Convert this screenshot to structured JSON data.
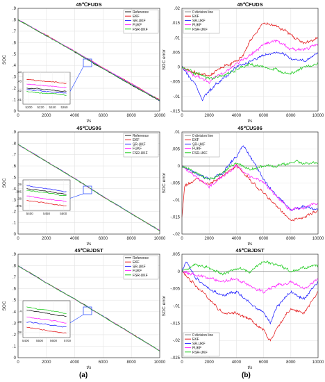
{
  "figure": {
    "label_a": "(a)",
    "label_b": "(b)"
  },
  "colors": {
    "Reference": "#1a1a1a",
    "EKF": "#e41a1c",
    "SR-UKF": "#2323ff",
    "FUKF": "#ff22ff",
    "FSR-UKF": "#22cc22",
    "zero": "#888888",
    "box": "#3355ff"
  },
  "chart_data": [
    {
      "id": "soc-fuds",
      "type": "line",
      "title": "45℃FUDS",
      "xlabel": "t/s",
      "ylabel": "SOC",
      "xlim": [
        0,
        10000
      ],
      "ylim": [
        0,
        0.9
      ],
      "xticks": [
        0,
        2000,
        4000,
        6000,
        8000,
        10000
      ],
      "yticks": [
        0,
        0.1,
        0.2,
        0.3,
        0.4,
        0.5,
        0.6,
        0.7,
        0.8,
        0.9
      ],
      "legend": "top-right",
      "series": [
        {
          "name": "Reference",
          "x": [
            0,
            2000,
            4000,
            6000,
            8000,
            10000
          ],
          "y": [
            0.8,
            0.66,
            0.52,
            0.37,
            0.23,
            0.09
          ]
        },
        {
          "name": "EKF",
          "x": [
            0,
            2000,
            4000,
            6000,
            8000,
            10000
          ],
          "y": [
            0.8,
            0.665,
            0.525,
            0.38,
            0.24,
            0.1
          ]
        },
        {
          "name": "SR-UKF",
          "x": [
            0,
            2000,
            4000,
            6000,
            8000,
            10000
          ],
          "y": [
            0.8,
            0.662,
            0.522,
            0.375,
            0.235,
            0.095
          ]
        },
        {
          "name": "FUKF",
          "x": [
            0,
            2000,
            4000,
            6000,
            8000,
            10000
          ],
          "y": [
            0.8,
            0.663,
            0.523,
            0.378,
            0.238,
            0.098
          ]
        },
        {
          "name": "FSR-UKF",
          "x": [
            0,
            2000,
            4000,
            6000,
            8000,
            10000
          ],
          "y": [
            0.8,
            0.66,
            0.52,
            0.372,
            0.232,
            0.092
          ]
        }
      ],
      "inset": {
        "xlim": [
          5190,
          5270
        ],
        "ylim": [
          0.405,
          0.44
        ],
        "xticks": [
          5200,
          5220,
          5240,
          5260
        ],
        "yticks": [
          0.41,
          0.42,
          0.43,
          0.44
        ],
        "series": [
          {
            "name": "EKF",
            "y": [
              0.432,
              0.428
            ]
          },
          {
            "name": "FUKF",
            "y": [
              0.427,
              0.423
            ]
          },
          {
            "name": "Reference",
            "y": [
              0.423,
              0.419
            ]
          },
          {
            "name": "SR-UKF",
            "y": [
              0.421,
              0.417
            ]
          },
          {
            "name": "FSR-UKF",
            "y": [
              0.419,
              0.415
            ]
          }
        ]
      }
    },
    {
      "id": "err-fuds",
      "type": "line",
      "title": "45℃FUDS",
      "xlabel": "t/s",
      "ylabel": "SOC error",
      "xlim": [
        0,
        10000
      ],
      "ylim": [
        -0.015,
        0.02
      ],
      "xticks": [
        0,
        2000,
        4000,
        6000,
        8000,
        10000
      ],
      "yticks": [
        -0.015,
        -0.01,
        -0.005,
        0,
        0.005,
        0.01,
        0.015,
        0.02
      ],
      "legend": "top-left",
      "series": [
        {
          "name": "0 division line",
          "x": [
            0,
            10000
          ],
          "y": [
            0,
            0
          ]
        },
        {
          "name": "EKF",
          "x": [
            0,
            1000,
            2000,
            3000,
            4000,
            4500,
            5000,
            6000,
            7000,
            8000,
            9000,
            10000
          ],
          "y": [
            0,
            -0.002,
            -0.003,
            0.0,
            0.002,
            0.004,
            0.009,
            0.015,
            0.014,
            0.011,
            0.008,
            0.01
          ]
        },
        {
          "name": "SR-UKF",
          "x": [
            0,
            1000,
            1500,
            2000,
            3000,
            4000,
            5000,
            6000,
            7000,
            8000,
            9000,
            10000
          ],
          "y": [
            0,
            -0.006,
            -0.011,
            -0.008,
            -0.004,
            0.0,
            0.002,
            0.004,
            0.005,
            0.003,
            0.002,
            0.005
          ]
        },
        {
          "name": "FUKF",
          "x": [
            0,
            1000,
            2000,
            3000,
            4000,
            5000,
            6000,
            7000,
            8000,
            9000,
            10000
          ],
          "y": [
            0,
            -0.003,
            -0.005,
            -0.002,
            0.001,
            0.004,
            0.008,
            0.009,
            0.006,
            0.006,
            0.008
          ]
        },
        {
          "name": "FSR-UKF",
          "x": [
            0,
            1000,
            2000,
            3000,
            4000,
            5000,
            6000,
            7000,
            8000,
            9000,
            10000
          ],
          "y": [
            0,
            -0.002,
            -0.004,
            -0.003,
            -0.001,
            0.001,
            0.0,
            -0.001,
            -0.002,
            0.0,
            0.001
          ]
        }
      ]
    },
    {
      "id": "soc-us06",
      "type": "line",
      "title": "45℃US06",
      "xlabel": "t/s",
      "ylabel": "SOC",
      "xlim": [
        0,
        10000
      ],
      "ylim": [
        0,
        0.9
      ],
      "xticks": [
        0,
        2000,
        4000,
        6000,
        8000,
        10000
      ],
      "yticks": [
        0,
        0.1,
        0.2,
        0.3,
        0.4,
        0.5,
        0.6,
        0.7,
        0.8,
        0.9
      ],
      "legend": "top-right",
      "series": [
        {
          "name": "Reference",
          "x": [
            0,
            2000,
            4000,
            6000,
            8000,
            10000
          ],
          "y": [
            0.79,
            0.64,
            0.49,
            0.33,
            0.18,
            0.03
          ]
        },
        {
          "name": "EKF",
          "x": [
            0,
            2000,
            4000,
            6000,
            8000,
            10000
          ],
          "y": [
            0.79,
            0.64,
            0.49,
            0.33,
            0.18,
            0.03
          ]
        },
        {
          "name": "SR-UKF",
          "x": [
            0,
            2000,
            4000,
            6000,
            8000,
            10000
          ],
          "y": [
            0.79,
            0.64,
            0.49,
            0.33,
            0.18,
            0.03
          ]
        },
        {
          "name": "FUKF",
          "x": [
            0,
            2000,
            4000,
            6000,
            8000,
            10000
          ],
          "y": [
            0.79,
            0.64,
            0.49,
            0.33,
            0.18,
            0.03
          ]
        },
        {
          "name": "FSR-UKF",
          "x": [
            0,
            2000,
            4000,
            6000,
            8000,
            10000
          ],
          "y": [
            0.79,
            0.64,
            0.49,
            0.33,
            0.18,
            0.03
          ]
        }
      ],
      "inset": {
        "xlim": [
          5380,
          5520
        ],
        "ylim": [
          0.372,
          0.393
        ],
        "xticks": [
          5400,
          5450,
          5500
        ],
        "yticks": [
          0.375,
          0.38,
          0.385,
          0.39
        ],
        "series": [
          {
            "name": "SR-UKF",
            "y": [
              0.389,
              0.385
            ]
          },
          {
            "name": "Reference",
            "y": [
              0.387,
              0.383
            ]
          },
          {
            "name": "FSR-UKF",
            "y": [
              0.386,
              0.382
            ]
          },
          {
            "name": "FUKF",
            "y": [
              0.382,
              0.378
            ]
          },
          {
            "name": "EKF",
            "y": [
              0.379,
              0.375
            ]
          }
        ]
      }
    },
    {
      "id": "err-us06",
      "type": "line",
      "title": "45℃US06",
      "xlabel": "t/s",
      "ylabel": "SOC error",
      "xlim": [
        0,
        10000
      ],
      "ylim": [
        -0.02,
        0.01
      ],
      "xticks": [
        0,
        2000,
        4000,
        6000,
        8000,
        10000
      ],
      "yticks": [
        -0.02,
        -0.015,
        -0.01,
        -0.005,
        0,
        0.005,
        0.01
      ],
      "legend": "top-left",
      "series": [
        {
          "name": "0 division line",
          "x": [
            0,
            10000
          ],
          "y": [
            0,
            0
          ]
        },
        {
          "name": "EKF",
          "x": [
            0,
            200,
            1000,
            2000,
            3000,
            4000,
            5000,
            6000,
            7000,
            8000,
            9000,
            10000
          ],
          "y": [
            -0.015,
            -0.006,
            -0.004,
            -0.005,
            -0.003,
            0.0,
            -0.004,
            -0.008,
            -0.012,
            -0.016,
            -0.015,
            -0.013
          ]
        },
        {
          "name": "SR-UKF",
          "x": [
            0,
            1000,
            2000,
            3000,
            4000,
            4500,
            5000,
            6000,
            7000,
            8000,
            9000,
            10000
          ],
          "y": [
            0,
            -0.002,
            -0.004,
            -0.002,
            0.003,
            0.006,
            0.003,
            -0.004,
            -0.009,
            -0.013,
            -0.012,
            -0.013
          ]
        },
        {
          "name": "FUKF",
          "x": [
            0,
            1000,
            2000,
            3000,
            4000,
            5000,
            6000,
            7000,
            8000,
            9000,
            10000
          ],
          "y": [
            0,
            -0.003,
            -0.006,
            -0.003,
            0.0,
            -0.003,
            -0.005,
            -0.009,
            -0.013,
            -0.012,
            -0.011
          ]
        },
        {
          "name": "FSR-UKF",
          "x": [
            0,
            1000,
            2000,
            3000,
            4000,
            5000,
            6000,
            7000,
            8000,
            9000,
            10000
          ],
          "y": [
            0,
            -0.002,
            -0.004,
            -0.002,
            0.001,
            -0.001,
            0.0,
            0.0,
            0.001,
            0.001,
            0.001
          ]
        }
      ]
    },
    {
      "id": "soc-bjdst",
      "type": "line",
      "title": "45℃BJDST",
      "xlabel": "t/s",
      "ylabel": "SOC",
      "xlim": [
        0,
        10000
      ],
      "ylim": [
        0,
        0.9
      ],
      "xticks": [
        0,
        2000,
        4000,
        6000,
        8000,
        10000
      ],
      "yticks": [
        0,
        0.1,
        0.2,
        0.3,
        0.4,
        0.5,
        0.6,
        0.7,
        0.8,
        0.9
      ],
      "legend": "top-right",
      "series": [
        {
          "name": "Reference",
          "x": [
            0,
            2000,
            4000,
            6000,
            8000,
            10000
          ],
          "y": [
            0.8,
            0.65,
            0.51,
            0.36,
            0.21,
            0.06
          ]
        },
        {
          "name": "EKF",
          "x": [
            0,
            2000,
            4000,
            6000,
            8000,
            10000
          ],
          "y": [
            0.8,
            0.65,
            0.51,
            0.36,
            0.21,
            0.06
          ]
        },
        {
          "name": "SR-UKF",
          "x": [
            0,
            2000,
            4000,
            6000,
            8000,
            10000
          ],
          "y": [
            0.8,
            0.65,
            0.51,
            0.36,
            0.21,
            0.06
          ]
        },
        {
          "name": "FUKF",
          "x": [
            0,
            2000,
            4000,
            6000,
            8000,
            10000
          ],
          "y": [
            0.8,
            0.65,
            0.51,
            0.36,
            0.21,
            0.06
          ]
        },
        {
          "name": "FSR-UKF",
          "x": [
            0,
            2000,
            4000,
            6000,
            8000,
            10000
          ],
          "y": [
            0.8,
            0.65,
            0.51,
            0.36,
            0.21,
            0.06
          ]
        }
      ],
      "inset": {
        "xlim": [
          5380,
          5720
        ],
        "ylim": [
          0.375,
          0.41
        ],
        "xticks": [
          5400,
          5500,
          5600,
          5700
        ],
        "yticks": [
          0.38,
          0.39,
          0.4
        ],
        "series": [
          {
            "name": "FSR-UKF",
            "y": [
              0.404,
              0.398
            ]
          },
          {
            "name": "Reference",
            "y": [
              0.401,
              0.395
            ]
          },
          {
            "name": "FUKF",
            "y": [
              0.395,
              0.389
            ]
          },
          {
            "name": "SR-UKF",
            "y": [
              0.39,
              0.385
            ]
          },
          {
            "name": "EKF",
            "y": [
              0.385,
              0.379
            ]
          }
        ]
      }
    },
    {
      "id": "err-bjdst",
      "type": "line",
      "title": "45℃BJDST",
      "xlabel": "t/s",
      "ylabel": "SOC error",
      "xlim": [
        0,
        10000
      ],
      "ylim": [
        -0.025,
        0.005
      ],
      "xticks": [
        0,
        2000,
        4000,
        6000,
        8000,
        10000
      ],
      "yticks": [
        -0.025,
        -0.02,
        -0.015,
        -0.01,
        -0.005,
        0,
        0.005
      ],
      "legend": "bottom-left",
      "series": [
        {
          "name": "0 division line",
          "x": [
            0,
            10000
          ],
          "y": [
            0,
            0
          ]
        },
        {
          "name": "EKF",
          "x": [
            0,
            1000,
            2000,
            3000,
            4000,
            5000,
            6000,
            6500,
            7000,
            8000,
            9000,
            10000
          ],
          "y": [
            0,
            -0.004,
            -0.008,
            -0.012,
            -0.012,
            -0.014,
            -0.017,
            -0.02,
            -0.016,
            -0.011,
            -0.012,
            -0.006
          ]
        },
        {
          "name": "SR-UKF",
          "x": [
            0,
            300,
            1000,
            2000,
            3000,
            4000,
            5000,
            6000,
            6500,
            7000,
            8000,
            9000,
            10000
          ],
          "y": [
            0,
            0.003,
            -0.002,
            -0.005,
            -0.007,
            -0.006,
            -0.009,
            -0.012,
            -0.015,
            -0.01,
            -0.006,
            -0.008,
            -0.003
          ]
        },
        {
          "name": "FUKF",
          "x": [
            0,
            1000,
            2000,
            3000,
            4000,
            5000,
            6000,
            7000,
            8000,
            9000,
            10000
          ],
          "y": [
            0,
            -0.001,
            -0.002,
            -0.003,
            -0.002,
            -0.004,
            -0.006,
            -0.004,
            -0.003,
            -0.005,
            -0.002
          ]
        },
        {
          "name": "FSR-UKF",
          "x": [
            0,
            1000,
            2000,
            3000,
            4000,
            5000,
            6000,
            7000,
            8000,
            9000,
            10000
          ],
          "y": [
            0,
            0.002,
            0.001,
            -0.001,
            0.001,
            0.0,
            0.003,
            0.002,
            0.0,
            0.001,
            0.002
          ]
        }
      ]
    }
  ]
}
